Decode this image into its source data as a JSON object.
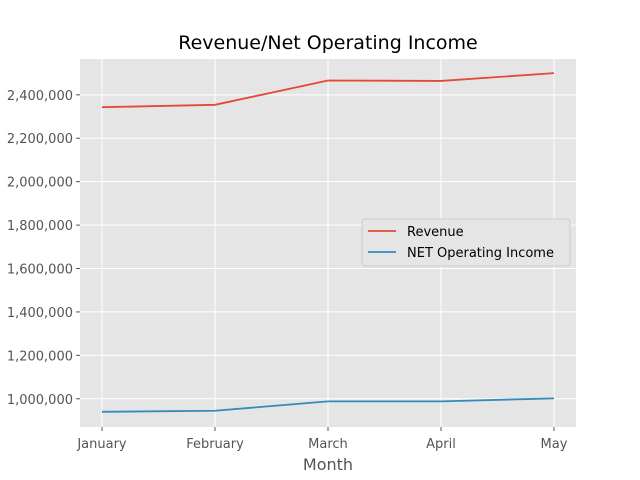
{
  "chart_data": {
    "type": "line",
    "title": "Revenue/Net Operating Income",
    "xlabel": "Month",
    "ylabel": "",
    "categories": [
      "January",
      "February",
      "March",
      "April",
      "May"
    ],
    "series": [
      {
        "name": "Revenue",
        "color": "#e24a33",
        "values": [
          2343000,
          2354000,
          2466000,
          2464000,
          2500000
        ]
      },
      {
        "name": "NET Operating Income",
        "color": "#348abd",
        "values": [
          940000,
          945000,
          988000,
          988000,
          1002000
        ]
      }
    ],
    "ylim": [
      870000,
      2565000
    ],
    "yticks": [
      1000000,
      1200000,
      1400000,
      1600000,
      1800000,
      2000000,
      2200000,
      2400000
    ],
    "ytick_labels": [
      "1,000,000",
      "1,200,000",
      "1,400,000",
      "1,600,000",
      "1,800,000",
      "2,000,000",
      "2,200,000",
      "2,400,000"
    ],
    "grid": true,
    "legend_position": "center-right",
    "style": {
      "plot_background": "#e5e5e5",
      "grid_color": "#ffffff"
    }
  }
}
